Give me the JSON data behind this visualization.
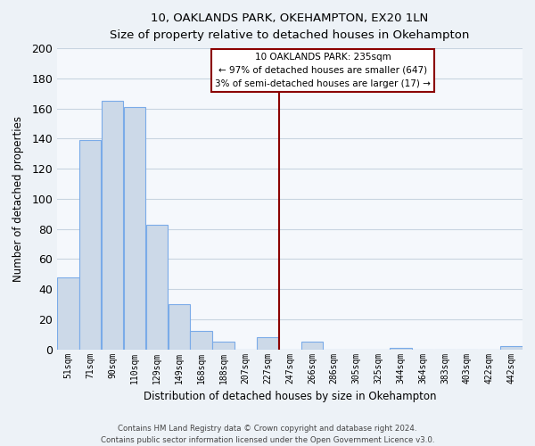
{
  "title": "10, OAKLANDS PARK, OKEHAMPTON, EX20 1LN",
  "subtitle": "Size of property relative to detached houses in Okehampton",
  "xlabel": "Distribution of detached houses by size in Okehampton",
  "ylabel": "Number of detached properties",
  "bin_labels": [
    "51sqm",
    "71sqm",
    "90sqm",
    "110sqm",
    "129sqm",
    "149sqm",
    "168sqm",
    "188sqm",
    "207sqm",
    "227sqm",
    "247sqm",
    "266sqm",
    "286sqm",
    "305sqm",
    "325sqm",
    "344sqm",
    "364sqm",
    "383sqm",
    "403sqm",
    "422sqm",
    "442sqm"
  ],
  "bar_values": [
    48,
    139,
    165,
    161,
    83,
    30,
    12,
    5,
    0,
    8,
    0,
    5,
    0,
    0,
    0,
    1,
    0,
    0,
    0,
    0,
    2
  ],
  "bar_color": "#ccd9e8",
  "bar_edge_color": "#7aabe8",
  "marker_bin_index": 9.5,
  "annotation_line1": "10 OAKLANDS PARK: 235sqm",
  "annotation_line2": "← 97% of detached houses are smaller (647)",
  "annotation_line3": "3% of semi-detached houses are larger (17) →",
  "marker_color": "#8b0000",
  "annotation_box_edge": "#8b0000",
  "ylim": [
    0,
    200
  ],
  "yticks": [
    0,
    20,
    40,
    60,
    80,
    100,
    120,
    140,
    160,
    180,
    200
  ],
  "footer_line1": "Contains HM Land Registry data © Crown copyright and database right 2024.",
  "footer_line2": "Contains public sector information licensed under the Open Government Licence v3.0.",
  "bg_color": "#edf2f7",
  "plot_bg_color": "#f5f8fc",
  "grid_color": "#c8d4e0"
}
